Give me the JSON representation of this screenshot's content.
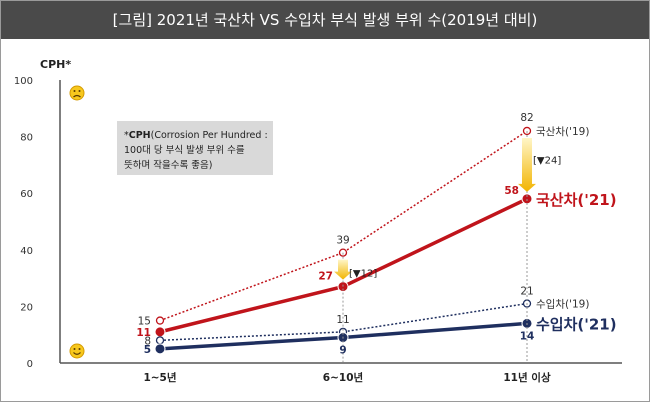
{
  "title": "[그림] 2021년 국산차 VS 수입차 부식 발생 부위 수(2019년 대비)",
  "chart_data": {
    "type": "line",
    "ylabel": "CPH*",
    "ylim": [
      0,
      100
    ],
    "yticks": [
      0,
      20,
      40,
      60,
      80,
      100
    ],
    "categories": [
      "1~5년",
      "6~10년",
      "11년 이상"
    ],
    "series": [
      {
        "name": "국산차('19)",
        "values": [
          15,
          39,
          82
        ],
        "color": "#c0141b",
        "style": "dotted"
      },
      {
        "name": "국산차('21)",
        "values": [
          11,
          27,
          58
        ],
        "color": "#c0141b",
        "style": "solid"
      },
      {
        "name": "수입차('19)",
        "values": [
          8,
          11,
          21
        ],
        "color": "#1f2f5f",
        "style": "dotted"
      },
      {
        "name": "수입차('21)",
        "values": [
          5,
          9,
          14
        ],
        "color": "#1f2f5f",
        "style": "solid"
      }
    ],
    "annotations": {
      "change_mid": "[▼12]",
      "change_end": "[▼24]"
    },
    "note_bold": "CPH",
    "note_line1": "(Corrosion Per Hundred :",
    "note_line2": "100대 당 부식 발생 부위 수를",
    "note_line3": "뜻하며 작을수록 좋음)",
    "grid": false,
    "icons": {
      "top": "sad-face-icon",
      "bottom": "smile-face-icon"
    }
  }
}
